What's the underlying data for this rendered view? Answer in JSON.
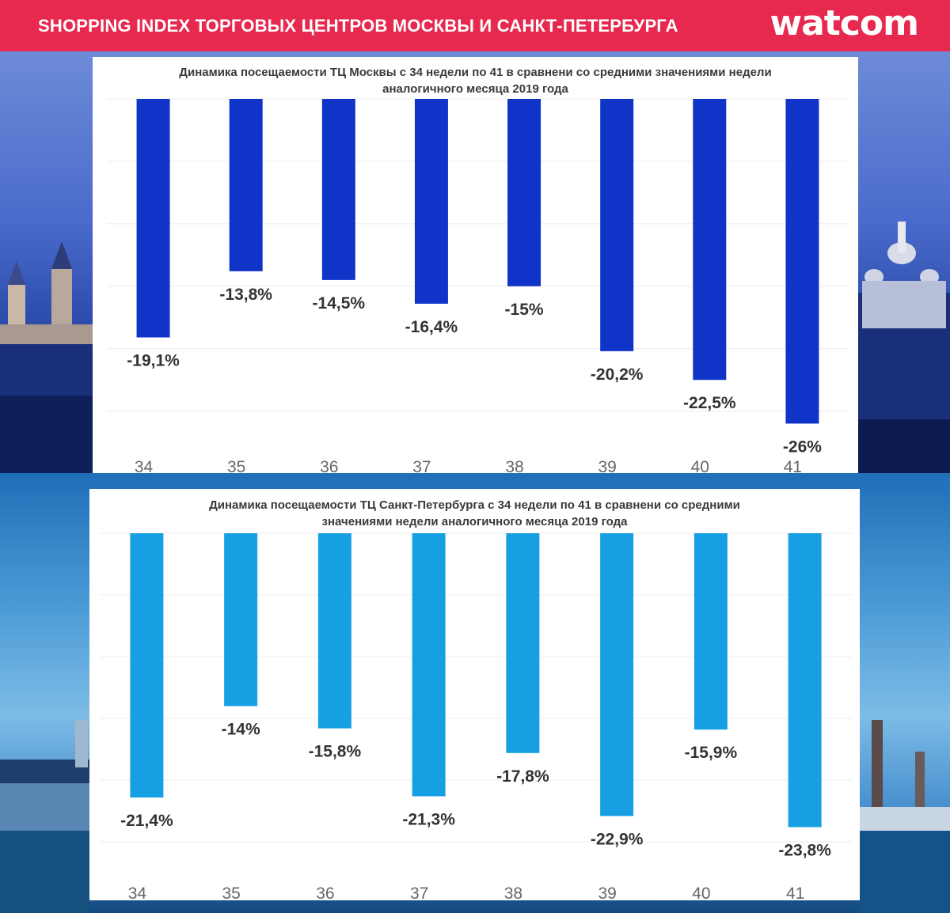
{
  "header": {
    "title": "SHOPPING INDEX ТОРГОВЫХ ЦЕНТРОВ МОСКВЫ И САНКТ-ПЕТЕРБУРГА",
    "logo": "watcom"
  },
  "colors": {
    "header_bg": "#e8294f",
    "moscow_bar": "#1033c8",
    "spb_bar": "#16a0e3"
  },
  "chart_data": [
    {
      "type": "bar",
      "title_line1": "Динамика посещаемости ТЦ Москвы с 34 недели по 41 в сравнени со средними  значениями недели",
      "title_line2": "аналогичного месяца 2019 года",
      "categories": [
        "34",
        "35",
        "36",
        "37",
        "38",
        "39",
        "40",
        "41"
      ],
      "values": [
        -19.1,
        -13.8,
        -14.5,
        -16.4,
        -15,
        -20.2,
        -22.5,
        -26
      ],
      "data_labels": [
        "-19,1%",
        "-13,8%",
        "-14,5%",
        "-16,4%",
        "-15%",
        "-20,2%",
        "-22,5%",
        "-26%"
      ],
      "ylim": [
        -28,
        0
      ],
      "grid": true,
      "color": "#1033c8"
    },
    {
      "type": "bar",
      "title_line1": "Динамика посещаемости ТЦ Санкт-Петербурга с 34 недели по 41 в сравнени со средними",
      "title_line2": "значениями недели аналогичного месяца 2019 года",
      "categories": [
        "34",
        "35",
        "36",
        "37",
        "38",
        "39",
        "40",
        "41"
      ],
      "values": [
        -21.4,
        -14,
        -15.8,
        -21.3,
        -17.8,
        -22.9,
        -15.9,
        -23.8
      ],
      "data_labels": [
        "-21,4%",
        "-14%",
        "-15,8%",
        "-21,3%",
        "-17,8%",
        "-22,9%",
        "-15,9%",
        "-23,8%"
      ],
      "ylim": [
        -28,
        0
      ],
      "grid": true,
      "color": "#16a0e3"
    }
  ]
}
